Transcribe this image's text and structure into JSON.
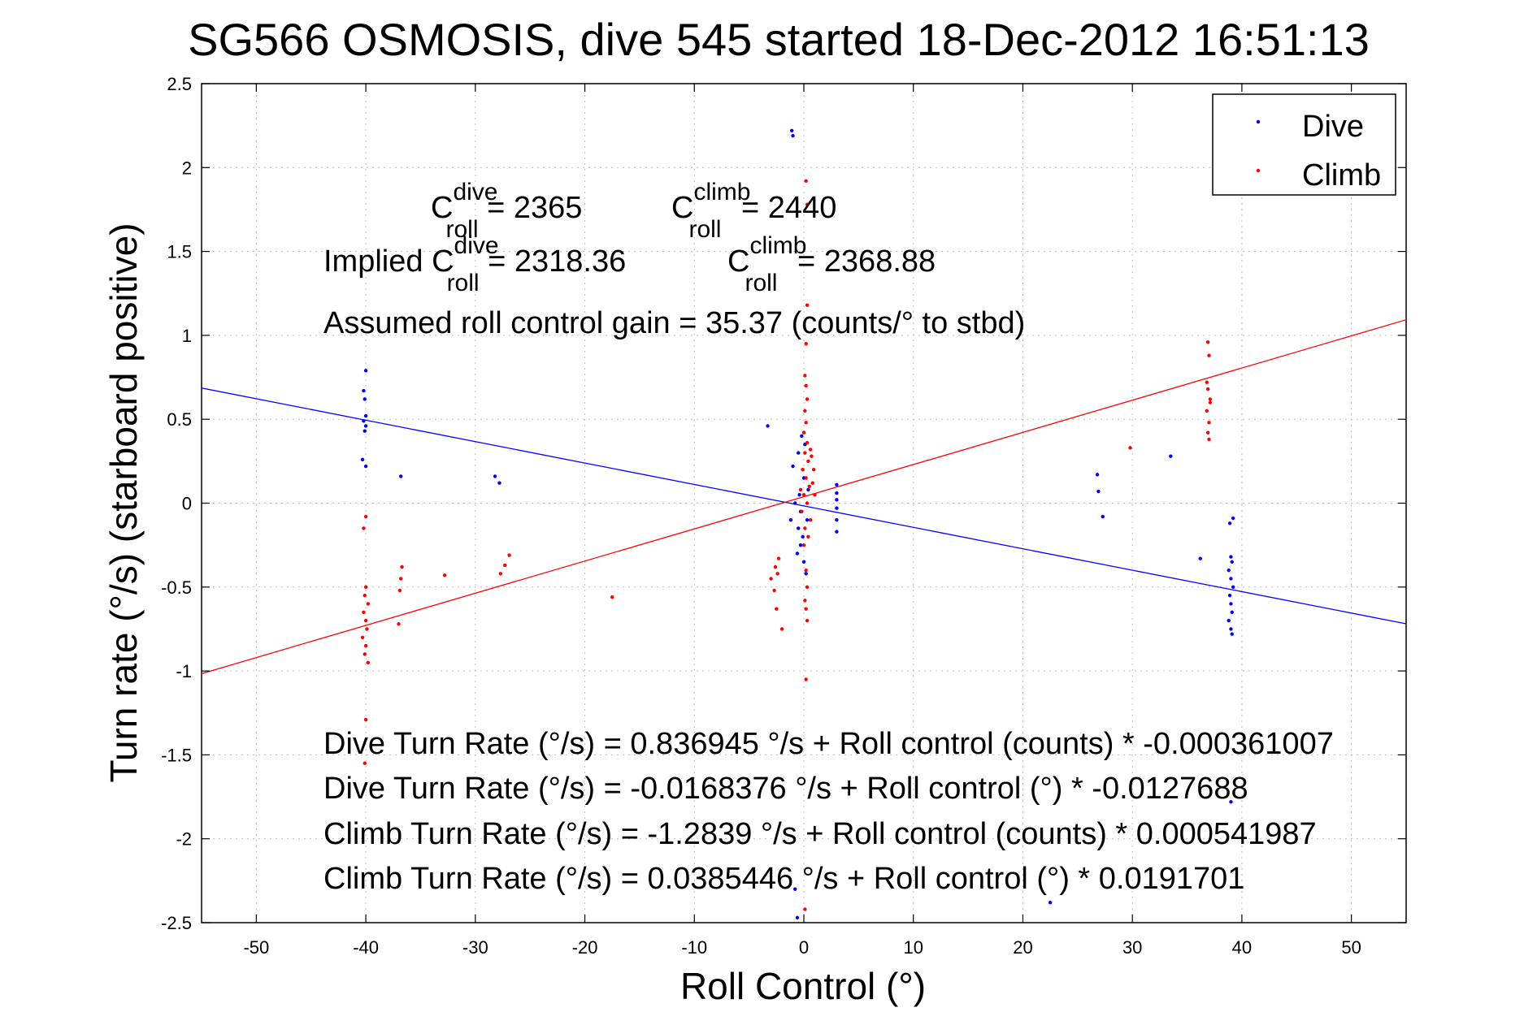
{
  "chart_data": {
    "type": "scatter",
    "title": "SG566 OSMOSIS, dive 545 started 18-Dec-2012 16:51:13",
    "xlabel": "Roll Control (°)",
    "ylabel": "Turn rate (°/s) (starboard positive)",
    "xlim": [
      -55,
      55
    ],
    "ylim": [
      -2.5,
      2.5
    ],
    "xticks": [
      -50,
      -40,
      -30,
      -20,
      -10,
      0,
      10,
      20,
      30,
      40,
      50
    ],
    "yticks": [
      -2.5,
      -2,
      -1.5,
      -1,
      -0.5,
      0,
      0.5,
      1,
      1.5,
      2,
      2.5
    ],
    "grid": true,
    "legend_position": "top-right",
    "series": [
      {
        "name": "Dive",
        "color": "#0000ff",
        "points": [
          [
            -1.1,
            2.22
          ],
          [
            -1.0,
            2.19
          ],
          [
            -0.8,
            -2.3
          ],
          [
            -0.6,
            -2.47
          ],
          [
            -40,
            0.79
          ],
          [
            -40.2,
            0.67
          ],
          [
            -40.1,
            0.62
          ],
          [
            -40,
            0.52
          ],
          [
            -40.2,
            0.49
          ],
          [
            -40,
            0.46
          ],
          [
            -40.1,
            0.43
          ],
          [
            -40.3,
            0.26
          ],
          [
            -40,
            0.22
          ],
          [
            -36.8,
            0.16
          ],
          [
            -28.2,
            0.16
          ],
          [
            -27.8,
            0.12
          ],
          [
            -3.3,
            0.46
          ],
          [
            -1.0,
            0.22
          ],
          [
            -0.5,
            0.3
          ],
          [
            -0.2,
            0.4
          ],
          [
            0.1,
            0.35
          ],
          [
            -0.4,
            0.05
          ],
          [
            -0.3,
            -0.05
          ],
          [
            0,
            0.15
          ],
          [
            -0.5,
            -0.15
          ],
          [
            -0.3,
            -0.25
          ],
          [
            0,
            -0.35
          ],
          [
            0.2,
            -0.42
          ],
          [
            -0.6,
            -0.3
          ],
          [
            -0.1,
            -0.2
          ],
          [
            0.3,
            -0.1
          ],
          [
            -1.2,
            -0.1
          ],
          [
            0.4,
            0.08
          ],
          [
            -0.8,
            0.0
          ],
          [
            3.0,
            0.11
          ],
          [
            3.0,
            0.06
          ],
          [
            3.0,
            0.02
          ],
          [
            3.0,
            -0.03
          ],
          [
            3.0,
            -0.1
          ],
          [
            3.0,
            -0.17
          ],
          [
            26.8,
            0.17
          ],
          [
            26.9,
            0.07
          ],
          [
            27.3,
            -0.08
          ],
          [
            33.5,
            0.28
          ],
          [
            39.2,
            -0.09
          ],
          [
            38.9,
            -0.12
          ],
          [
            39.0,
            -0.32
          ],
          [
            39.1,
            -0.35
          ],
          [
            38.8,
            -0.4
          ],
          [
            39.0,
            -0.45
          ],
          [
            39.2,
            -0.5
          ],
          [
            38.9,
            -0.55
          ],
          [
            39.0,
            -0.6
          ],
          [
            39.1,
            -0.65
          ],
          [
            38.8,
            -0.7
          ],
          [
            39.0,
            -0.75
          ],
          [
            39.1,
            -0.78
          ],
          [
            36.2,
            -0.33
          ],
          [
            39.0,
            -1.78
          ],
          [
            22.5,
            -2.38
          ]
        ]
      },
      {
        "name": "Climb",
        "color": "#ff0000",
        "points": [
          [
            0.2,
            1.92
          ],
          [
            0.3,
            1.78
          ],
          [
            0.3,
            1.18
          ],
          [
            0.2,
            0.95
          ],
          [
            0.1,
            0.76
          ],
          [
            0.2,
            0.7
          ],
          [
            0.3,
            0.62
          ],
          [
            0.1,
            0.55
          ],
          [
            0.2,
            0.48
          ],
          [
            0.0,
            0.42
          ],
          [
            0.3,
            0.36
          ],
          [
            0.1,
            0.3
          ],
          [
            0.4,
            0.25
          ],
          [
            -0.1,
            0.2
          ],
          [
            0.2,
            0.15
          ],
          [
            0.5,
            0.1
          ],
          [
            0.0,
            0.05
          ],
          [
            0.3,
            0.0
          ],
          [
            -0.2,
            -0.05
          ],
          [
            0.6,
            -0.1
          ],
          [
            0.1,
            -0.15
          ],
          [
            0.4,
            -0.2
          ],
          [
            0.0,
            -0.25
          ],
          [
            0.7,
            0.28
          ],
          [
            0.8,
            0.12
          ],
          [
            -0.3,
            0.08
          ],
          [
            1.0,
            0.05
          ],
          [
            0.9,
            0.2
          ],
          [
            0.6,
            0.32
          ],
          [
            0.2,
            -0.4
          ],
          [
            0.3,
            -0.5
          ],
          [
            0.1,
            -0.58
          ],
          [
            0.2,
            -0.63
          ],
          [
            0.3,
            -0.7
          ],
          [
            0.2,
            -1.05
          ],
          [
            0.1,
            -2.42
          ],
          [
            -2.3,
            -0.33
          ],
          [
            -2.4,
            -0.42
          ],
          [
            -2.7,
            -0.52
          ],
          [
            -2.5,
            -0.63
          ],
          [
            -2.0,
            -0.75
          ],
          [
            -3.0,
            -0.45
          ],
          [
            -2.6,
            -0.38
          ],
          [
            -40,
            -0.08
          ],
          [
            -40.2,
            -0.15
          ],
          [
            -40,
            -0.5
          ],
          [
            -40.1,
            -0.55
          ],
          [
            -39.8,
            -0.6
          ],
          [
            -40.2,
            -0.65
          ],
          [
            -40,
            -0.7
          ],
          [
            -39.9,
            -0.75
          ],
          [
            -40.3,
            -0.8
          ],
          [
            -40,
            -0.85
          ],
          [
            -40.1,
            -0.9
          ],
          [
            -39.8,
            -0.95
          ],
          [
            -40,
            -1.29
          ],
          [
            -40.1,
            -1.55
          ],
          [
            -36.7,
            -0.38
          ],
          [
            -36.8,
            -0.45
          ],
          [
            -36.9,
            -0.52
          ],
          [
            -37.0,
            -0.72
          ],
          [
            -32.8,
            -0.43
          ],
          [
            -27.3,
            -0.37
          ],
          [
            -27.7,
            -0.42
          ],
          [
            -26.9,
            -0.31
          ],
          [
            -17.5,
            -0.56
          ],
          [
            29.8,
            0.33
          ],
          [
            36.9,
            0.96
          ],
          [
            37.0,
            0.88
          ],
          [
            36.8,
            0.72
          ],
          [
            36.9,
            0.68
          ],
          [
            37.1,
            0.6
          ],
          [
            36.8,
            0.55
          ],
          [
            37.0,
            0.48
          ],
          [
            36.9,
            0.42
          ],
          [
            37.0,
            0.38
          ],
          [
            37.1,
            0.62
          ]
        ]
      }
    ],
    "fit_lines": [
      {
        "series": "Dive",
        "color": "#0000ff",
        "x": [
          -55,
          55
        ],
        "y": [
          0.686,
          -0.719
        ]
      },
      {
        "series": "Climb",
        "color": "#ff0000",
        "x": [
          -55,
          55
        ],
        "y": [
          -1.016,
          1.093
        ]
      }
    ],
    "annotations": {
      "c_dive": {
        "symbol": "C",
        "sup": "dive",
        "sub": "roll",
        "value": " = 2365"
      },
      "c_climb": {
        "symbol": "C",
        "sup": "climb",
        "sub": "roll",
        "value": " = 2440"
      },
      "implied_prefix": "Implied ",
      "implied_dive": {
        "symbol": "C",
        "sup": "dive",
        "sub": "roll",
        "value": " = 2318.36"
      },
      "implied_climb": {
        "symbol": "C",
        "sup": "climb",
        "sub": "roll",
        "value": " = 2368.88"
      },
      "gain": "Assumed roll control gain = 35.37 (counts/° to stbd)",
      "eq1": "Dive Turn Rate (°/s) = 0.836945 °/s + Roll control (counts) * -0.000361007",
      "eq2": "Dive Turn Rate (°/s) = -0.0168376 °/s + Roll control (°) * -0.0127688",
      "eq3": "Climb Turn Rate (°/s) = -1.2839 °/s + Roll control (counts) * 0.000541987",
      "eq4": "Climb Turn Rate (°/s) = 0.0385446 °/s + Roll control (°) * 0.0191701"
    }
  }
}
